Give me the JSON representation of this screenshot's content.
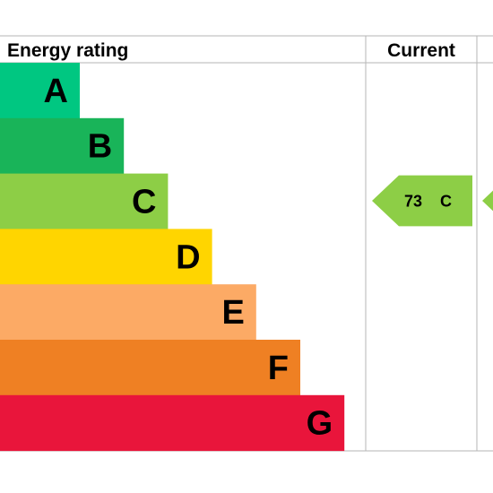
{
  "headers": {
    "rating": "Energy rating",
    "current": "Current",
    "potential": ""
  },
  "colors": {
    "grid": "#b5b5b5"
  },
  "chart_data": {
    "type": "bar",
    "categories": [
      "A",
      "B",
      "C",
      "D",
      "E",
      "F",
      "G"
    ],
    "colors": [
      "#00c781",
      "#19b459",
      "#8dce46",
      "#ffd500",
      "#fcaa65",
      "#ef8023",
      "#e9153b"
    ],
    "current": {
      "value": 73,
      "band": "C",
      "color": "#8dce46"
    },
    "potential": {
      "band": "C",
      "color": "#8dce46"
    }
  }
}
